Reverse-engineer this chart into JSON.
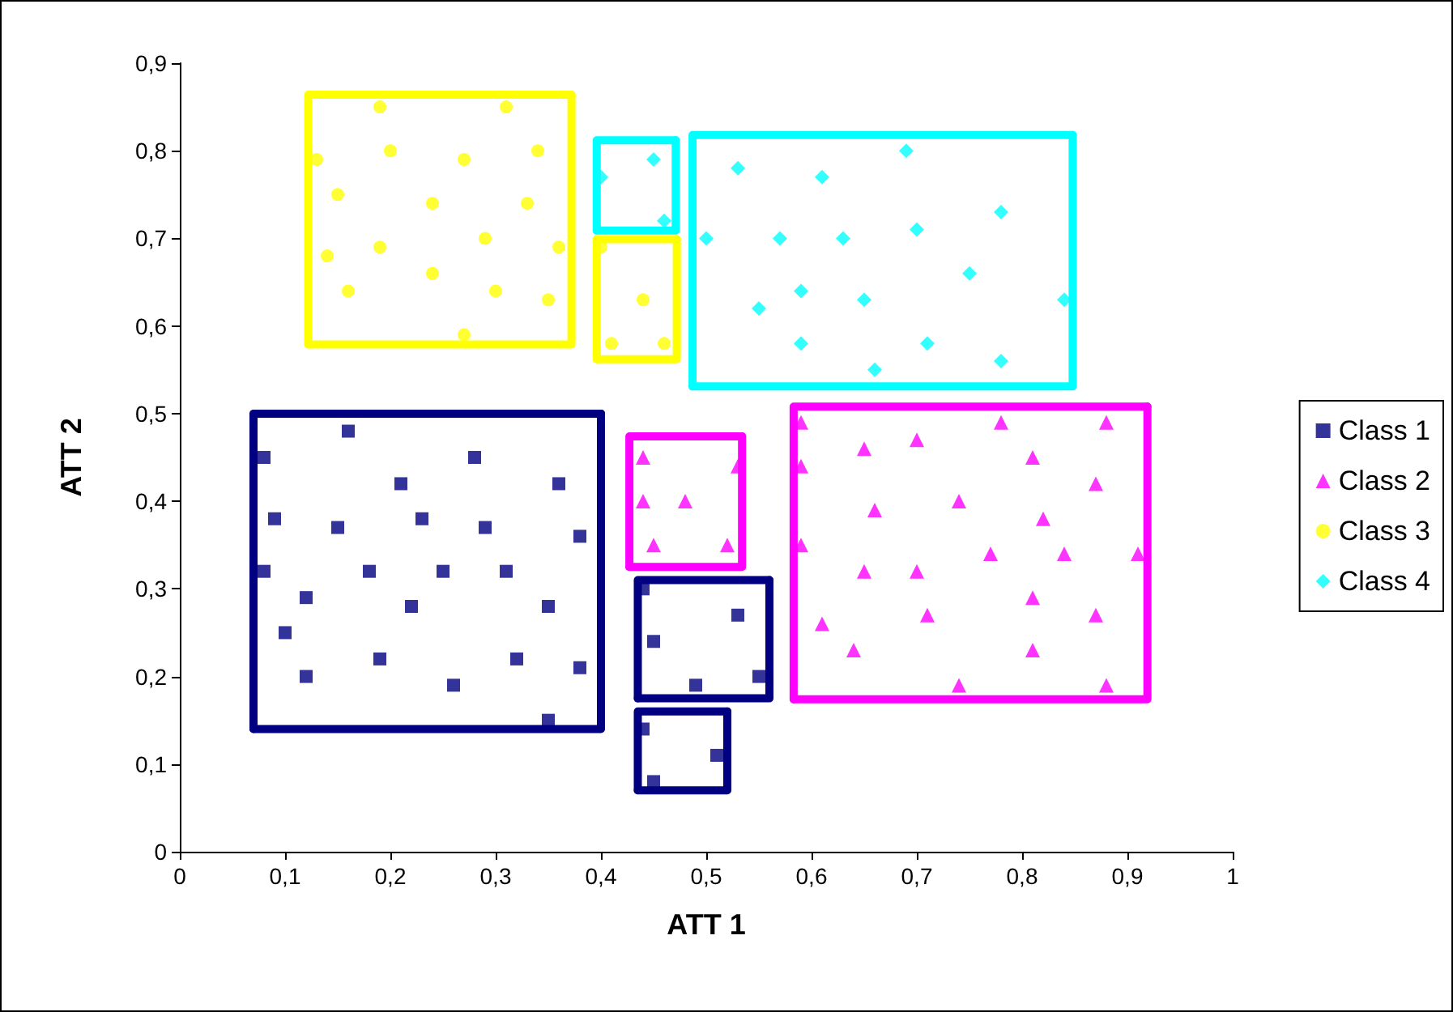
{
  "chart_data": {
    "type": "scatter",
    "xlabel": "ATT 1",
    "ylabel": "ATT 2",
    "grid": false,
    "legend": "right",
    "xlim": [
      0,
      1
    ],
    "ylim": [
      0,
      0.9
    ],
    "xticks": [
      {
        "value": 0,
        "label": "0"
      },
      {
        "value": 0.1,
        "label": "0,1"
      },
      {
        "value": 0.2,
        "label": "0,2"
      },
      {
        "value": 0.3,
        "label": "0,3"
      },
      {
        "value": 0.4,
        "label": "0,4"
      },
      {
        "value": 0.5,
        "label": "0,5"
      },
      {
        "value": 0.6,
        "label": "0,6"
      },
      {
        "value": 0.7,
        "label": "0,7"
      },
      {
        "value": 0.8,
        "label": "0,8"
      },
      {
        "value": 0.9,
        "label": "0,9"
      },
      {
        "value": 1,
        "label": "1"
      }
    ],
    "yticks": [
      {
        "value": 0,
        "label": "0"
      },
      {
        "value": 0.1,
        "label": "0,1"
      },
      {
        "value": 0.2,
        "label": "0,2"
      },
      {
        "value": 0.3,
        "label": "0,3"
      },
      {
        "value": 0.4,
        "label": "0,4"
      },
      {
        "value": 0.5,
        "label": "0,5"
      },
      {
        "value": 0.6,
        "label": "0,6"
      },
      {
        "value": 0.7,
        "label": "0,7"
      },
      {
        "value": 0.8,
        "label": "0,8"
      },
      {
        "value": 0.9,
        "label": "0,9"
      }
    ],
    "series": [
      {
        "type": "line",
        "color": "#000080",
        "x": [
          0.07,
          0.07,
          0.4
        ],
        "values": [
          0.14,
          0.5,
          0.5
        ]
      },
      {
        "type": "line",
        "color": "#000080",
        "x": [
          0.4,
          0.4,
          0.07
        ],
        "values": [
          0.5,
          0.14,
          0.14
        ]
      },
      {
        "type": "line",
        "color": "#000080",
        "x": [
          0.435,
          0.435,
          0.56
        ],
        "values": [
          0.175,
          0.31,
          0.31
        ]
      },
      {
        "type": "line",
        "color": "#000080",
        "x": [
          0.56,
          0.56,
          0.435
        ],
        "values": [
          0.31,
          0.175,
          0.175
        ]
      },
      {
        "type": "line",
        "color": "#000080",
        "x": [
          0.435,
          0.435,
          0.52
        ],
        "values": [
          0.07,
          0.16,
          0.16
        ]
      },
      {
        "type": "line",
        "color": "#000080",
        "x": [
          0.52,
          0.52,
          0.435
        ],
        "values": [
          0.16,
          0.07,
          0.07
        ]
      },
      {
        "type": "line",
        "color": "#ff00ff",
        "x": [
          0.427,
          0.427,
          0.534
        ],
        "values": [
          0.325,
          0.474,
          0.474
        ]
      },
      {
        "type": "line",
        "color": "#ff00ff",
        "x": [
          0.534,
          0.534,
          0.427
        ],
        "values": [
          0.474,
          0.325,
          0.325
        ]
      },
      {
        "type": "line",
        "color": "#ff00ff",
        "x": [
          0.583,
          0.583,
          0.919
        ],
        "values": [
          0.174,
          0.508,
          0.508
        ]
      },
      {
        "type": "line",
        "color": "#ff00ff",
        "x": [
          0.919,
          0.919,
          0.583
        ],
        "values": [
          0.508,
          0.174,
          0.174
        ]
      },
      {
        "type": "line",
        "color": "#ffff00",
        "x": [
          0.122,
          0.122,
          0.372
        ],
        "values": [
          0.579,
          0.864,
          0.864
        ]
      },
      {
        "type": "line",
        "color": "#ffff00",
        "x": [
          0.372,
          0.372,
          0.122
        ],
        "values": [
          0.864,
          0.579,
          0.579
        ]
      },
      {
        "type": "line",
        "color": "#ffff00",
        "x": [
          0.396,
          0.396,
          0.472
        ],
        "values": [
          0.562,
          0.699,
          0.699
        ]
      },
      {
        "type": "line",
        "color": "#ffff00",
        "x": [
          0.472,
          0.472,
          0.396
        ],
        "values": [
          0.699,
          0.562,
          0.562
        ]
      },
      {
        "type": "line",
        "color": "#00ffff",
        "x": [
          0.396,
          0.396,
          0.471
        ],
        "values": [
          0.709,
          0.812,
          0.812
        ]
      },
      {
        "type": "line",
        "color": "#00ffff",
        "x": [
          0.471,
          0.471,
          0.396
        ],
        "values": [
          0.812,
          0.709,
          0.709
        ]
      },
      {
        "type": "line",
        "color": "#00ffff",
        "x": [
          0.487,
          0.487,
          0.848
        ],
        "values": [
          0.531,
          0.818,
          0.818
        ]
      },
      {
        "type": "line",
        "color": "#00ffff",
        "x": [
          0.848,
          0.848,
          0.487
        ],
        "values": [
          0.818,
          0.531,
          0.531
        ]
      },
      {
        "name": "Class 1",
        "color": "#000080",
        "marker": "square",
        "x": [
          0.08,
          0.16,
          0.28,
          0.21,
          0.36,
          0.09,
          0.15,
          0.23,
          0.29,
          0.38,
          0.08,
          0.18,
          0.25,
          0.31,
          0.12,
          0.22,
          0.35,
          0.1,
          0.19,
          0.32,
          0.38,
          0.12,
          0.26,
          0.35,
          0.44,
          0.53,
          0.45,
          0.49,
          0.55,
          0.44,
          0.51,
          0.45
        ],
        "values": [
          0.45,
          0.48,
          0.45,
          0.42,
          0.42,
          0.38,
          0.37,
          0.38,
          0.37,
          0.36,
          0.32,
          0.32,
          0.32,
          0.32,
          0.29,
          0.28,
          0.28,
          0.25,
          0.22,
          0.22,
          0.21,
          0.2,
          0.19,
          0.15,
          0.3,
          0.27,
          0.24,
          0.19,
          0.2,
          0.14,
          0.11,
          0.08
        ]
      },
      {
        "name": "Class 2",
        "color": "#ff00ff",
        "marker": "triangle",
        "x": [
          0.44,
          0.53,
          0.44,
          0.48,
          0.45,
          0.52,
          0.59,
          0.78,
          0.88,
          0.65,
          0.7,
          0.59,
          0.81,
          0.87,
          0.66,
          0.74,
          0.82,
          0.59,
          0.77,
          0.84,
          0.91,
          0.65,
          0.7,
          0.81,
          0.61,
          0.71,
          0.87,
          0.64,
          0.81,
          0.74,
          0.88
        ],
        "values": [
          0.45,
          0.44,
          0.4,
          0.4,
          0.35,
          0.35,
          0.49,
          0.49,
          0.49,
          0.46,
          0.47,
          0.44,
          0.45,
          0.42,
          0.39,
          0.4,
          0.38,
          0.35,
          0.34,
          0.34,
          0.34,
          0.32,
          0.32,
          0.29,
          0.26,
          0.27,
          0.27,
          0.23,
          0.23,
          0.19,
          0.19
        ]
      },
      {
        "name": "Class 3",
        "color": "#ffff00",
        "marker": "circle",
        "x": [
          0.19,
          0.31,
          0.13,
          0.2,
          0.27,
          0.34,
          0.15,
          0.24,
          0.33,
          0.29,
          0.14,
          0.19,
          0.36,
          0.24,
          0.16,
          0.3,
          0.35,
          0.27,
          0.4,
          0.44,
          0.41,
          0.46
        ],
        "values": [
          0.85,
          0.85,
          0.79,
          0.8,
          0.79,
          0.8,
          0.75,
          0.74,
          0.74,
          0.7,
          0.68,
          0.69,
          0.69,
          0.66,
          0.64,
          0.64,
          0.63,
          0.59,
          0.69,
          0.63,
          0.58,
          0.58
        ]
      },
      {
        "name": "Class 4",
        "color": "#00ffff",
        "marker": "diamond",
        "x": [
          0.4,
          0.45,
          0.46,
          0.5,
          0.53,
          0.61,
          0.69,
          0.78,
          0.57,
          0.63,
          0.7,
          0.75,
          0.59,
          0.55,
          0.65,
          0.84,
          0.59,
          0.71,
          0.78,
          0.66
        ],
        "values": [
          0.77,
          0.79,
          0.72,
          0.7,
          0.78,
          0.77,
          0.8,
          0.73,
          0.7,
          0.7,
          0.71,
          0.66,
          0.64,
          0.62,
          0.63,
          0.63,
          0.58,
          0.58,
          0.56,
          0.55
        ]
      }
    ]
  }
}
